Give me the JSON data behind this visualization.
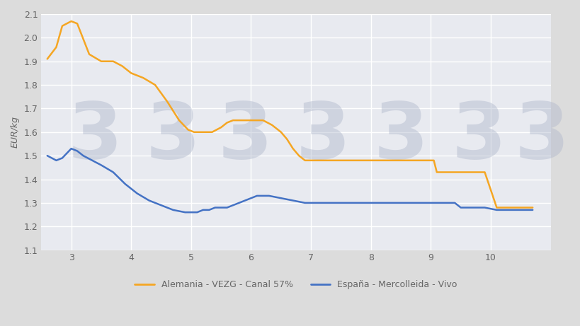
{
  "ylabel": "EUR/kg",
  "xlim": [
    2.5,
    11.0
  ],
  "ylim": [
    1.1,
    2.1
  ],
  "yticks": [
    1.1,
    1.2,
    1.3,
    1.4,
    1.5,
    1.6,
    1.7,
    1.8,
    1.9,
    2.0,
    2.1
  ],
  "xticks": [
    3,
    4,
    5,
    6,
    7,
    8,
    9,
    10
  ],
  "background_color": "#dcdcdc",
  "plot_bg_color": "#e8eaf0",
  "grid_color": "#ffffff",
  "alemania_x": [
    2.6,
    2.75,
    2.85,
    3.0,
    3.1,
    3.3,
    3.5,
    3.7,
    3.85,
    4.0,
    4.2,
    4.4,
    4.6,
    4.8,
    4.95,
    5.05,
    5.2,
    5.35,
    5.5,
    5.6,
    5.7,
    5.8,
    5.9,
    6.0,
    6.1,
    6.2,
    6.35,
    6.5,
    6.6,
    6.7,
    6.8,
    6.85,
    6.9,
    7.0,
    7.1,
    7.2,
    7.5,
    7.8,
    8.0,
    8.3,
    8.5,
    8.8,
    9.0,
    9.05,
    9.1,
    9.2,
    9.3,
    9.35,
    9.5,
    9.7,
    9.9,
    10.1,
    10.3,
    10.5,
    10.7
  ],
  "alemania_y": [
    1.91,
    1.96,
    2.05,
    2.07,
    2.06,
    1.93,
    1.9,
    1.9,
    1.88,
    1.85,
    1.83,
    1.8,
    1.73,
    1.65,
    1.61,
    1.6,
    1.6,
    1.6,
    1.62,
    1.64,
    1.65,
    1.65,
    1.65,
    1.65,
    1.65,
    1.65,
    1.63,
    1.6,
    1.57,
    1.53,
    1.5,
    1.49,
    1.48,
    1.48,
    1.48,
    1.48,
    1.48,
    1.48,
    1.48,
    1.48,
    1.48,
    1.48,
    1.48,
    1.48,
    1.43,
    1.43,
    1.43,
    1.43,
    1.43,
    1.43,
    1.43,
    1.28,
    1.28,
    1.28,
    1.28
  ],
  "espana_x": [
    2.6,
    2.75,
    2.85,
    3.0,
    3.1,
    3.2,
    3.35,
    3.5,
    3.7,
    3.9,
    4.1,
    4.3,
    4.5,
    4.7,
    4.9,
    5.0,
    5.1,
    5.2,
    5.3,
    5.4,
    5.5,
    5.6,
    5.7,
    5.8,
    5.9,
    6.0,
    6.1,
    6.2,
    6.3,
    6.5,
    6.7,
    6.9,
    7.0,
    7.1,
    7.2,
    7.3,
    7.5,
    7.7,
    7.9,
    8.1,
    8.3,
    8.5,
    8.7,
    8.9,
    9.0,
    9.1,
    9.2,
    9.3,
    9.4,
    9.5,
    9.7,
    9.9,
    10.1,
    10.3,
    10.5,
    10.7
  ],
  "espana_y": [
    1.5,
    1.48,
    1.49,
    1.53,
    1.52,
    1.5,
    1.48,
    1.46,
    1.43,
    1.38,
    1.34,
    1.31,
    1.29,
    1.27,
    1.26,
    1.26,
    1.26,
    1.27,
    1.27,
    1.28,
    1.28,
    1.28,
    1.29,
    1.3,
    1.31,
    1.32,
    1.33,
    1.33,
    1.33,
    1.32,
    1.31,
    1.3,
    1.3,
    1.3,
    1.3,
    1.3,
    1.3,
    1.3,
    1.3,
    1.3,
    1.3,
    1.3,
    1.3,
    1.3,
    1.3,
    1.3,
    1.3,
    1.3,
    1.3,
    1.28,
    1.28,
    1.28,
    1.27,
    1.27,
    1.27,
    1.27
  ],
  "alemania_color": "#f5a623",
  "espana_color": "#4472c4",
  "alemania_label": "Alemania - VEZG - Canal 57%",
  "espana_label": "España - Mercolleida - Vivo",
  "watermark_3_positions": [
    [
      3.4,
      1.58
    ],
    [
      4.7,
      1.58
    ],
    [
      5.9,
      1.58
    ],
    [
      7.2,
      1.58
    ],
    [
      8.5,
      1.58
    ],
    [
      9.8,
      1.58
    ],
    [
      10.85,
      1.58
    ]
  ],
  "watermark_color": "#b0b8cc",
  "watermark_alpha": 0.45,
  "watermark_fontsize": 80,
  "legend_fontsize": 9,
  "tick_fontsize": 9,
  "tick_color": "#666666",
  "ylabel_fontsize": 9
}
